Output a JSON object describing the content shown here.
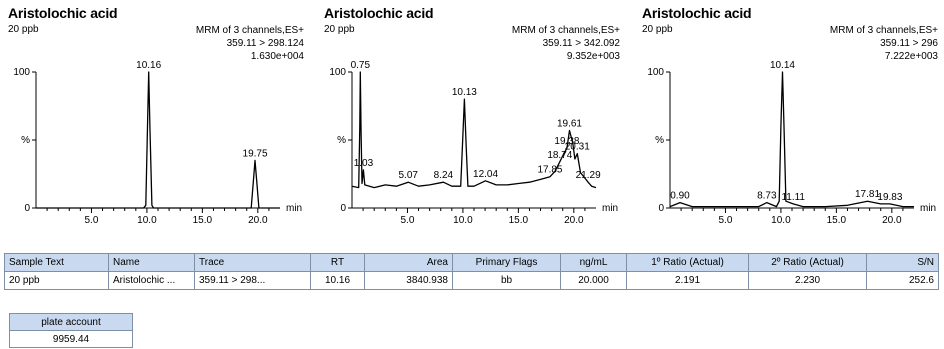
{
  "panels": [
    {
      "title": "Aristolochic acid",
      "sample": "20 ppb",
      "info": [
        "MRM of 3 channels,ES+",
        "359.11 > 298.124",
        "1.630e+004"
      ],
      "chart_data": {
        "type": "line",
        "title": "Aristolochic acid",
        "xlabel": "min",
        "ylabel": "%",
        "xlim": [
          0,
          22
        ],
        "ylim": [
          0,
          100
        ],
        "xticks": [
          "5.0",
          "10.0",
          "15.0",
          "20.0"
        ],
        "yticks": [
          "0",
          "%",
          "100"
        ],
        "peak_labels": [
          {
            "label": "10.16",
            "x": 10.16,
            "y": 100
          },
          {
            "label": "19.75",
            "x": 19.75,
            "y": 35
          }
        ],
        "series": [
          {
            "values": [
              [
                0,
                0
              ],
              [
                9.7,
                0
              ],
              [
                9.9,
                2
              ],
              [
                10.05,
                60
              ],
              [
                10.16,
                100
              ],
              [
                10.27,
                60
              ],
              [
                10.45,
                2
              ],
              [
                10.6,
                0
              ],
              [
                19.4,
                0
              ],
              [
                19.6,
                20
              ],
              [
                19.75,
                35
              ],
              [
                19.9,
                20
              ],
              [
                20.1,
                0
              ],
              [
                22,
                0
              ]
            ]
          }
        ]
      }
    },
    {
      "title": "Aristolochic acid",
      "sample": "20 ppb",
      "info": [
        "MRM of 3 channels,ES+",
        "359.11 > 342.092",
        "9.352e+003"
      ],
      "chart_data": {
        "type": "line",
        "title": "Aristolochic acid",
        "xlabel": "min",
        "ylabel": "%",
        "xlim": [
          0,
          22
        ],
        "ylim": [
          0,
          100
        ],
        "xticks": [
          "5.0",
          "10.0",
          "15.0",
          "20.0"
        ],
        "yticks": [
          "0",
          "%",
          "100"
        ],
        "peak_labels": [
          {
            "label": "0.75",
            "x": 0.75,
            "y": 100
          },
          {
            "label": "1.03",
            "x": 1.03,
            "y": 28
          },
          {
            "label": "5.07",
            "x": 5.07,
            "y": 19
          },
          {
            "label": "8.24",
            "x": 8.24,
            "y": 19
          },
          {
            "label": "10.13",
            "x": 10.13,
            "y": 80
          },
          {
            "label": "12.04",
            "x": 12.04,
            "y": 20
          },
          {
            "label": "17.85",
            "x": 17.85,
            "y": 23
          },
          {
            "label": "18.74",
            "x": 18.74,
            "y": 34
          },
          {
            "label": "19.38",
            "x": 19.38,
            "y": 44
          },
          {
            "label": "19.61",
            "x": 19.61,
            "y": 57
          },
          {
            "label": "20.31",
            "x": 20.31,
            "y": 40
          },
          {
            "label": "21.29",
            "x": 21.29,
            "y": 19
          }
        ],
        "series": [
          {
            "values": [
              [
                0,
                16
              ],
              [
                0.6,
                15
              ],
              [
                0.7,
                60
              ],
              [
                0.75,
                100
              ],
              [
                0.82,
                55
              ],
              [
                0.9,
                18
              ],
              [
                1.03,
                28
              ],
              [
                1.15,
                17
              ],
              [
                2,
                15
              ],
              [
                3,
                17
              ],
              [
                4,
                16
              ],
              [
                5.07,
                19
              ],
              [
                6,
                16
              ],
              [
                7,
                17
              ],
              [
                8.24,
                19
              ],
              [
                9,
                16
              ],
              [
                9.8,
                16
              ],
              [
                9.95,
                45
              ],
              [
                10.13,
                80
              ],
              [
                10.3,
                45
              ],
              [
                10.45,
                16
              ],
              [
                11,
                16
              ],
              [
                12.04,
                20
              ],
              [
                13,
                17
              ],
              [
                14,
                17
              ],
              [
                15,
                18
              ],
              [
                16,
                19
              ],
              [
                17,
                21
              ],
              [
                17.85,
                23
              ],
              [
                18.3,
                27
              ],
              [
                18.74,
                34
              ],
              [
                19.1,
                40
              ],
              [
                19.38,
                44
              ],
              [
                19.61,
                57
              ],
              [
                19.9,
                48
              ],
              [
                20.1,
                36
              ],
              [
                20.31,
                40
              ],
              [
                20.6,
                26
              ],
              [
                21,
                22
              ],
              [
                21.29,
                19
              ],
              [
                21.6,
                16
              ],
              [
                22,
                15
              ]
            ]
          }
        ]
      }
    },
    {
      "title": "Aristolochic acid",
      "sample": "20 ppb",
      "info": [
        "MRM of 3 channels,ES+",
        "359.11 > 296",
        "7.222e+003"
      ],
      "chart_data": {
        "type": "line",
        "title": "Aristolochic acid",
        "xlabel": "min",
        "ylabel": "%",
        "xlim": [
          0,
          22
        ],
        "ylim": [
          0,
          100
        ],
        "xticks": [
          "5.0",
          "10.0",
          "15.0",
          "20.0"
        ],
        "yticks": [
          "0",
          "%",
          "100"
        ],
        "peak_labels": [
          {
            "label": "0.90",
            "x": 0.9,
            "y": 4
          },
          {
            "label": "8.73",
            "x": 8.73,
            "y": 4
          },
          {
            "label": "10.14",
            "x": 10.14,
            "y": 100
          },
          {
            "label": "11.11",
            "x": 11.11,
            "y": 3
          },
          {
            "label": "17.81",
            "x": 17.81,
            "y": 5
          },
          {
            "label": "19.83",
            "x": 19.83,
            "y": 3
          }
        ],
        "series": [
          {
            "values": [
              [
                0,
                1
              ],
              [
                0.9,
                4
              ],
              [
                2,
                1
              ],
              [
                4,
                1
              ],
              [
                6,
                1
              ],
              [
                8,
                1
              ],
              [
                8.73,
                4
              ],
              [
                9.6,
                1
              ],
              [
                9.85,
                5
              ],
              [
                10.0,
                60
              ],
              [
                10.14,
                100
              ],
              [
                10.28,
                60
              ],
              [
                10.45,
                5
              ],
              [
                11.11,
                3
              ],
              [
                12,
                1
              ],
              [
                14,
                1
              ],
              [
                16,
                2
              ],
              [
                17.81,
                5
              ],
              [
                19,
                3
              ],
              [
                19.83,
                3
              ],
              [
                21,
                1
              ],
              [
                22,
                1
              ]
            ]
          }
        ]
      }
    }
  ],
  "results_table": {
    "headers": [
      "Sample Text",
      "Name",
      "Trace",
      "RT",
      "Area",
      "Primary Flags",
      "ng/mL",
      "1º Ratio (Actual)",
      "2º Ratio (Actual)",
      "S/N"
    ],
    "row": [
      "20 ppb",
      "Aristolochic ...",
      "359.11 > 298...",
      "10.16",
      "3840.938",
      "bb",
      "20.000",
      "2.191",
      "2.230",
      "252.6"
    ]
  },
  "plate_table": {
    "header": "plate account",
    "value": "9959.44"
  }
}
